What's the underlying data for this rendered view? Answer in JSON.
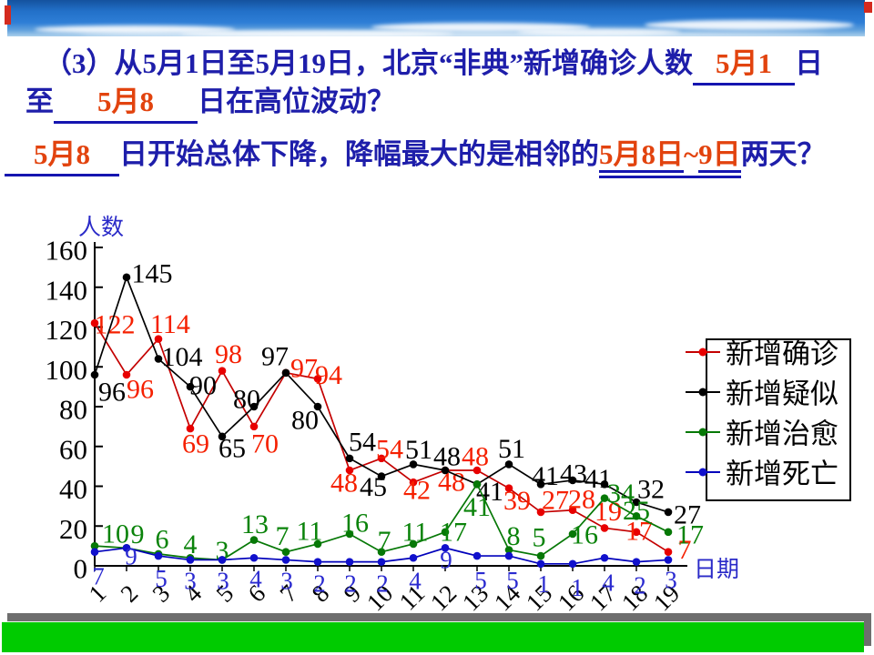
{
  "question": {
    "line1": [
      {
        "text": "（3）从5月1日至5月19日，北京“非典”新增确诊人数",
        "kind": "normal"
      },
      {
        "text": "5月1",
        "kind": "blank-answer"
      },
      {
        "text": "日",
        "kind": "normal"
      }
    ],
    "line2": [
      {
        "text": "至",
        "kind": "normal"
      },
      {
        "text": "5月8",
        "kind": "blank-answer"
      },
      {
        "text": "日在高位波动？",
        "kind": "normal"
      }
    ],
    "line3": [
      {
        "text": "5月8",
        "kind": "blank-answer"
      },
      {
        "text": "日开始总体下降，降幅最大的是相邻的",
        "kind": "normal"
      },
      {
        "text": "5月8日~9日",
        "kind": "inline-answer"
      },
      {
        "text": "两天？",
        "kind": "normal"
      }
    ]
  },
  "chart_data": {
    "type": "line",
    "title": "",
    "xlabel": "日期",
    "ylabel": "人数",
    "x": [
      1,
      2,
      3,
      4,
      5,
      6,
      7,
      8,
      9,
      10,
      11,
      12,
      13,
      14,
      15,
      16,
      17,
      18,
      19
    ],
    "ylim": [
      0,
      160
    ],
    "ytick_step": 20,
    "grid": false,
    "legend_position": "right",
    "series": [
      {
        "name": "新增确诊",
        "color": "#c40000",
        "dot_color": "#e80000",
        "label_color": "#f52000",
        "values": [
          122,
          96,
          114,
          69,
          98,
          70,
          97,
          94,
          48,
          54,
          42,
          48,
          48,
          39,
          27,
          28,
          19,
          17,
          7
        ]
      },
      {
        "name": "新增疑似",
        "color": "#000000",
        "dot_color": "#000000",
        "label_color": "#000000",
        "values": [
          96,
          145,
          104,
          90,
          65,
          80,
          97,
          80,
          54,
          45,
          51,
          48,
          41,
          51,
          41,
          43,
          41,
          32,
          27
        ]
      },
      {
        "name": "新增治愈",
        "color": "#067806",
        "dot_color": "#067806",
        "label_color": "#0a830a",
        "values": [
          10,
          9,
          6,
          4,
          3,
          13,
          7,
          11,
          16,
          7,
          11,
          17,
          41,
          8,
          5,
          16,
          34,
          25,
          17
        ]
      },
      {
        "name": "新增死亡",
        "color": "#0000bb",
        "dot_color": "#1010cc",
        "label_color": "#2a2ad0",
        "values": [
          7,
          9,
          5,
          3,
          3,
          4,
          3,
          2,
          2,
          2,
          4,
          9,
          5,
          5,
          1,
          1,
          4,
          2,
          3
        ]
      }
    ]
  },
  "colors": {
    "question_text": "#1e1eaa",
    "answer_text": "#e2430e",
    "underline": "#1515b0",
    "bottom_bar_green": "#00cb00",
    "bottom_bar_shadow": "#6e6e6e"
  }
}
